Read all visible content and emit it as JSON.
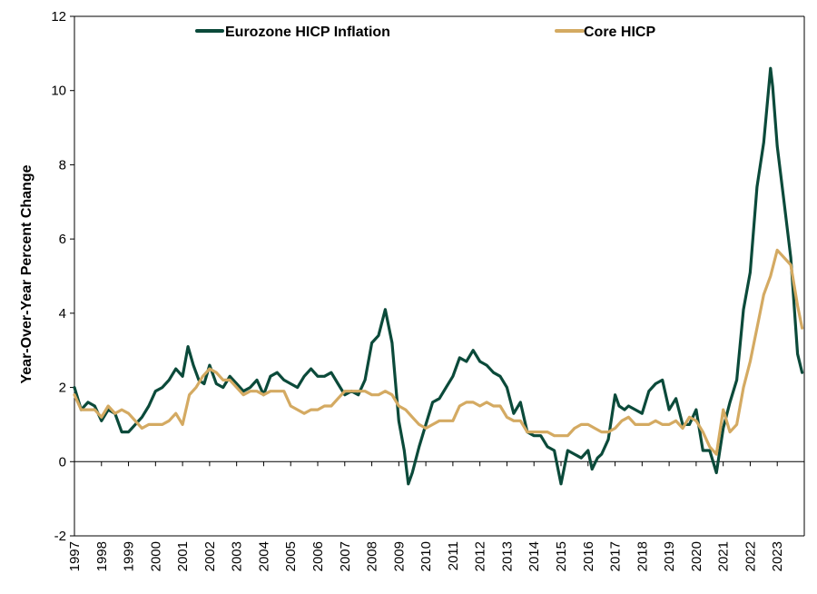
{
  "chart_data": {
    "type": "line",
    "title": "",
    "xlabel": "",
    "ylabel": "Year-Over-Year Percent Change",
    "xlim": [
      1997.0,
      2024.0
    ],
    "ylim": [
      -2,
      12
    ],
    "y_ticks": [
      "-2",
      "0",
      "2",
      "4",
      "6",
      "8",
      "10",
      "12"
    ],
    "x_ticks": [
      "1997",
      "1998",
      "1999",
      "2000",
      "2001",
      "2002",
      "2003",
      "2004",
      "2005",
      "2006",
      "2007",
      "2008",
      "2009",
      "2010",
      "2011",
      "2012",
      "2013",
      "2014",
      "2015",
      "2016",
      "2017",
      "2018",
      "2019",
      "2020",
      "2021",
      "2022",
      "2023"
    ],
    "grid": false,
    "legend_position": "top",
    "series": [
      {
        "name": "Eurozone HICP Inflation",
        "color": "#0b4a3a",
        "x": [
          1997.0,
          1997.25,
          1997.5,
          1997.75,
          1998.0,
          1998.25,
          1998.5,
          1998.75,
          1999.0,
          1999.25,
          1999.5,
          1999.75,
          2000.0,
          2000.25,
          2000.5,
          2000.75,
          2001.0,
          2001.2,
          2001.4,
          2001.6,
          2001.8,
          2002.0,
          2002.25,
          2002.5,
          2002.75,
          2003.0,
          2003.25,
          2003.5,
          2003.75,
          2004.0,
          2004.25,
          2004.5,
          2004.75,
          2005.0,
          2005.25,
          2005.5,
          2005.75,
          2006.0,
          2006.25,
          2006.5,
          2006.75,
          2007.0,
          2007.25,
          2007.5,
          2007.75,
          2008.0,
          2008.25,
          2008.5,
          2008.75,
          2009.0,
          2009.2,
          2009.35,
          2009.5,
          2009.75,
          2010.0,
          2010.25,
          2010.5,
          2010.75,
          2011.0,
          2011.25,
          2011.5,
          2011.75,
          2012.0,
          2012.25,
          2012.5,
          2012.75,
          2013.0,
          2013.25,
          2013.5,
          2013.75,
          2014.0,
          2014.25,
          2014.5,
          2014.75,
          2015.0,
          2015.25,
          2015.5,
          2015.75,
          2016.0,
          2016.15,
          2016.35,
          2016.5,
          2016.75,
          2017.0,
          2017.15,
          2017.35,
          2017.5,
          2017.75,
          2018.0,
          2018.25,
          2018.5,
          2018.75,
          2019.0,
          2019.25,
          2019.5,
          2019.75,
          2020.0,
          2020.25,
          2020.5,
          2020.75,
          2021.0,
          2021.25,
          2021.5,
          2021.75,
          2022.0,
          2022.25,
          2022.5,
          2022.75,
          2022.83,
          2023.0,
          2023.25,
          2023.5,
          2023.75,
          2023.92
        ],
        "values": [
          2.0,
          1.4,
          1.6,
          1.5,
          1.1,
          1.4,
          1.3,
          0.8,
          0.8,
          1.0,
          1.2,
          1.5,
          1.9,
          2.0,
          2.2,
          2.5,
          2.3,
          3.1,
          2.6,
          2.2,
          2.1,
          2.6,
          2.1,
          2.0,
          2.3,
          2.1,
          1.9,
          2.0,
          2.2,
          1.8,
          2.3,
          2.4,
          2.2,
          2.1,
          2.0,
          2.3,
          2.5,
          2.3,
          2.3,
          2.4,
          2.1,
          1.8,
          1.9,
          1.8,
          2.2,
          3.2,
          3.4,
          4.1,
          3.2,
          1.1,
          0.3,
          -0.6,
          -0.3,
          0.4,
          1.0,
          1.6,
          1.7,
          2.0,
          2.3,
          2.8,
          2.7,
          3.0,
          2.7,
          2.6,
          2.4,
          2.3,
          2.0,
          1.3,
          1.6,
          0.8,
          0.7,
          0.7,
          0.4,
          0.3,
          -0.6,
          0.3,
          0.2,
          0.1,
          0.3,
          -0.2,
          0.1,
          0.2,
          0.6,
          1.8,
          1.5,
          1.4,
          1.5,
          1.4,
          1.3,
          1.9,
          2.1,
          2.2,
          1.4,
          1.7,
          1.0,
          1.0,
          1.4,
          0.3,
          0.3,
          -0.3,
          0.9,
          1.6,
          2.2,
          4.1,
          5.1,
          7.4,
          8.6,
          10.6,
          10.1,
          8.5,
          7.0,
          5.5,
          2.9,
          2.4
        ],
        "extra_x": []
      },
      {
        "name": "Core HICP",
        "color": "#d4aa62",
        "x": [
          1997.0,
          1997.25,
          1997.5,
          1997.75,
          1998.0,
          1998.25,
          1998.5,
          1998.75,
          1999.0,
          1999.25,
          1999.5,
          1999.75,
          2000.0,
          2000.25,
          2000.5,
          2000.75,
          2001.0,
          2001.25,
          2001.5,
          2001.75,
          2002.0,
          2002.25,
          2002.5,
          2002.75,
          2003.0,
          2003.25,
          2003.5,
          2003.75,
          2004.0,
          2004.25,
          2004.5,
          2004.75,
          2005.0,
          2005.25,
          2005.5,
          2005.75,
          2006.0,
          2006.25,
          2006.5,
          2006.75,
          2007.0,
          2007.25,
          2007.5,
          2007.75,
          2008.0,
          2008.25,
          2008.5,
          2008.75,
          2009.0,
          2009.25,
          2009.5,
          2009.75,
          2010.0,
          2010.25,
          2010.5,
          2010.75,
          2011.0,
          2011.25,
          2011.5,
          2011.75,
          2012.0,
          2012.25,
          2012.5,
          2012.75,
          2013.0,
          2013.25,
          2013.5,
          2013.75,
          2014.0,
          2014.25,
          2014.5,
          2014.75,
          2015.0,
          2015.25,
          2015.5,
          2015.75,
          2016.0,
          2016.25,
          2016.5,
          2016.75,
          2017.0,
          2017.25,
          2017.5,
          2017.75,
          2018.0,
          2018.25,
          2018.5,
          2018.75,
          2019.0,
          2019.25,
          2019.5,
          2019.75,
          2020.0,
          2020.25,
          2020.5,
          2020.75,
          2021.0,
          2021.25,
          2021.5,
          2021.75,
          2022.0,
          2022.25,
          2022.5,
          2022.75,
          2023.0,
          2023.25,
          2023.5,
          2023.75,
          2023.92
        ],
        "values": [
          1.8,
          1.4,
          1.4,
          1.4,
          1.2,
          1.5,
          1.3,
          1.4,
          1.3,
          1.1,
          0.9,
          1.0,
          1.0,
          1.0,
          1.1,
          1.3,
          1.0,
          1.8,
          2.0,
          2.3,
          2.5,
          2.4,
          2.2,
          2.2,
          2.0,
          1.8,
          1.9,
          1.9,
          1.8,
          1.9,
          1.9,
          1.9,
          1.5,
          1.4,
          1.3,
          1.4,
          1.4,
          1.5,
          1.5,
          1.7,
          1.9,
          1.9,
          1.9,
          1.9,
          1.8,
          1.8,
          1.9,
          1.8,
          1.5,
          1.4,
          1.2,
          1.0,
          0.9,
          1.0,
          1.1,
          1.1,
          1.1,
          1.5,
          1.6,
          1.6,
          1.5,
          1.6,
          1.5,
          1.5,
          1.2,
          1.1,
          1.1,
          0.8,
          0.8,
          0.8,
          0.8,
          0.7,
          0.7,
          0.7,
          0.9,
          1.0,
          1.0,
          0.9,
          0.8,
          0.8,
          0.9,
          1.1,
          1.2,
          1.0,
          1.0,
          1.0,
          1.1,
          1.0,
          1.0,
          1.1,
          0.9,
          1.2,
          1.1,
          0.8,
          0.4,
          0.2,
          1.4,
          0.8,
          1.0,
          2.0,
          2.7,
          3.6,
          4.5,
          5.0,
          5.7,
          5.5,
          5.3,
          4.2,
          3.6
        ],
        "extra_x": []
      }
    ]
  }
}
